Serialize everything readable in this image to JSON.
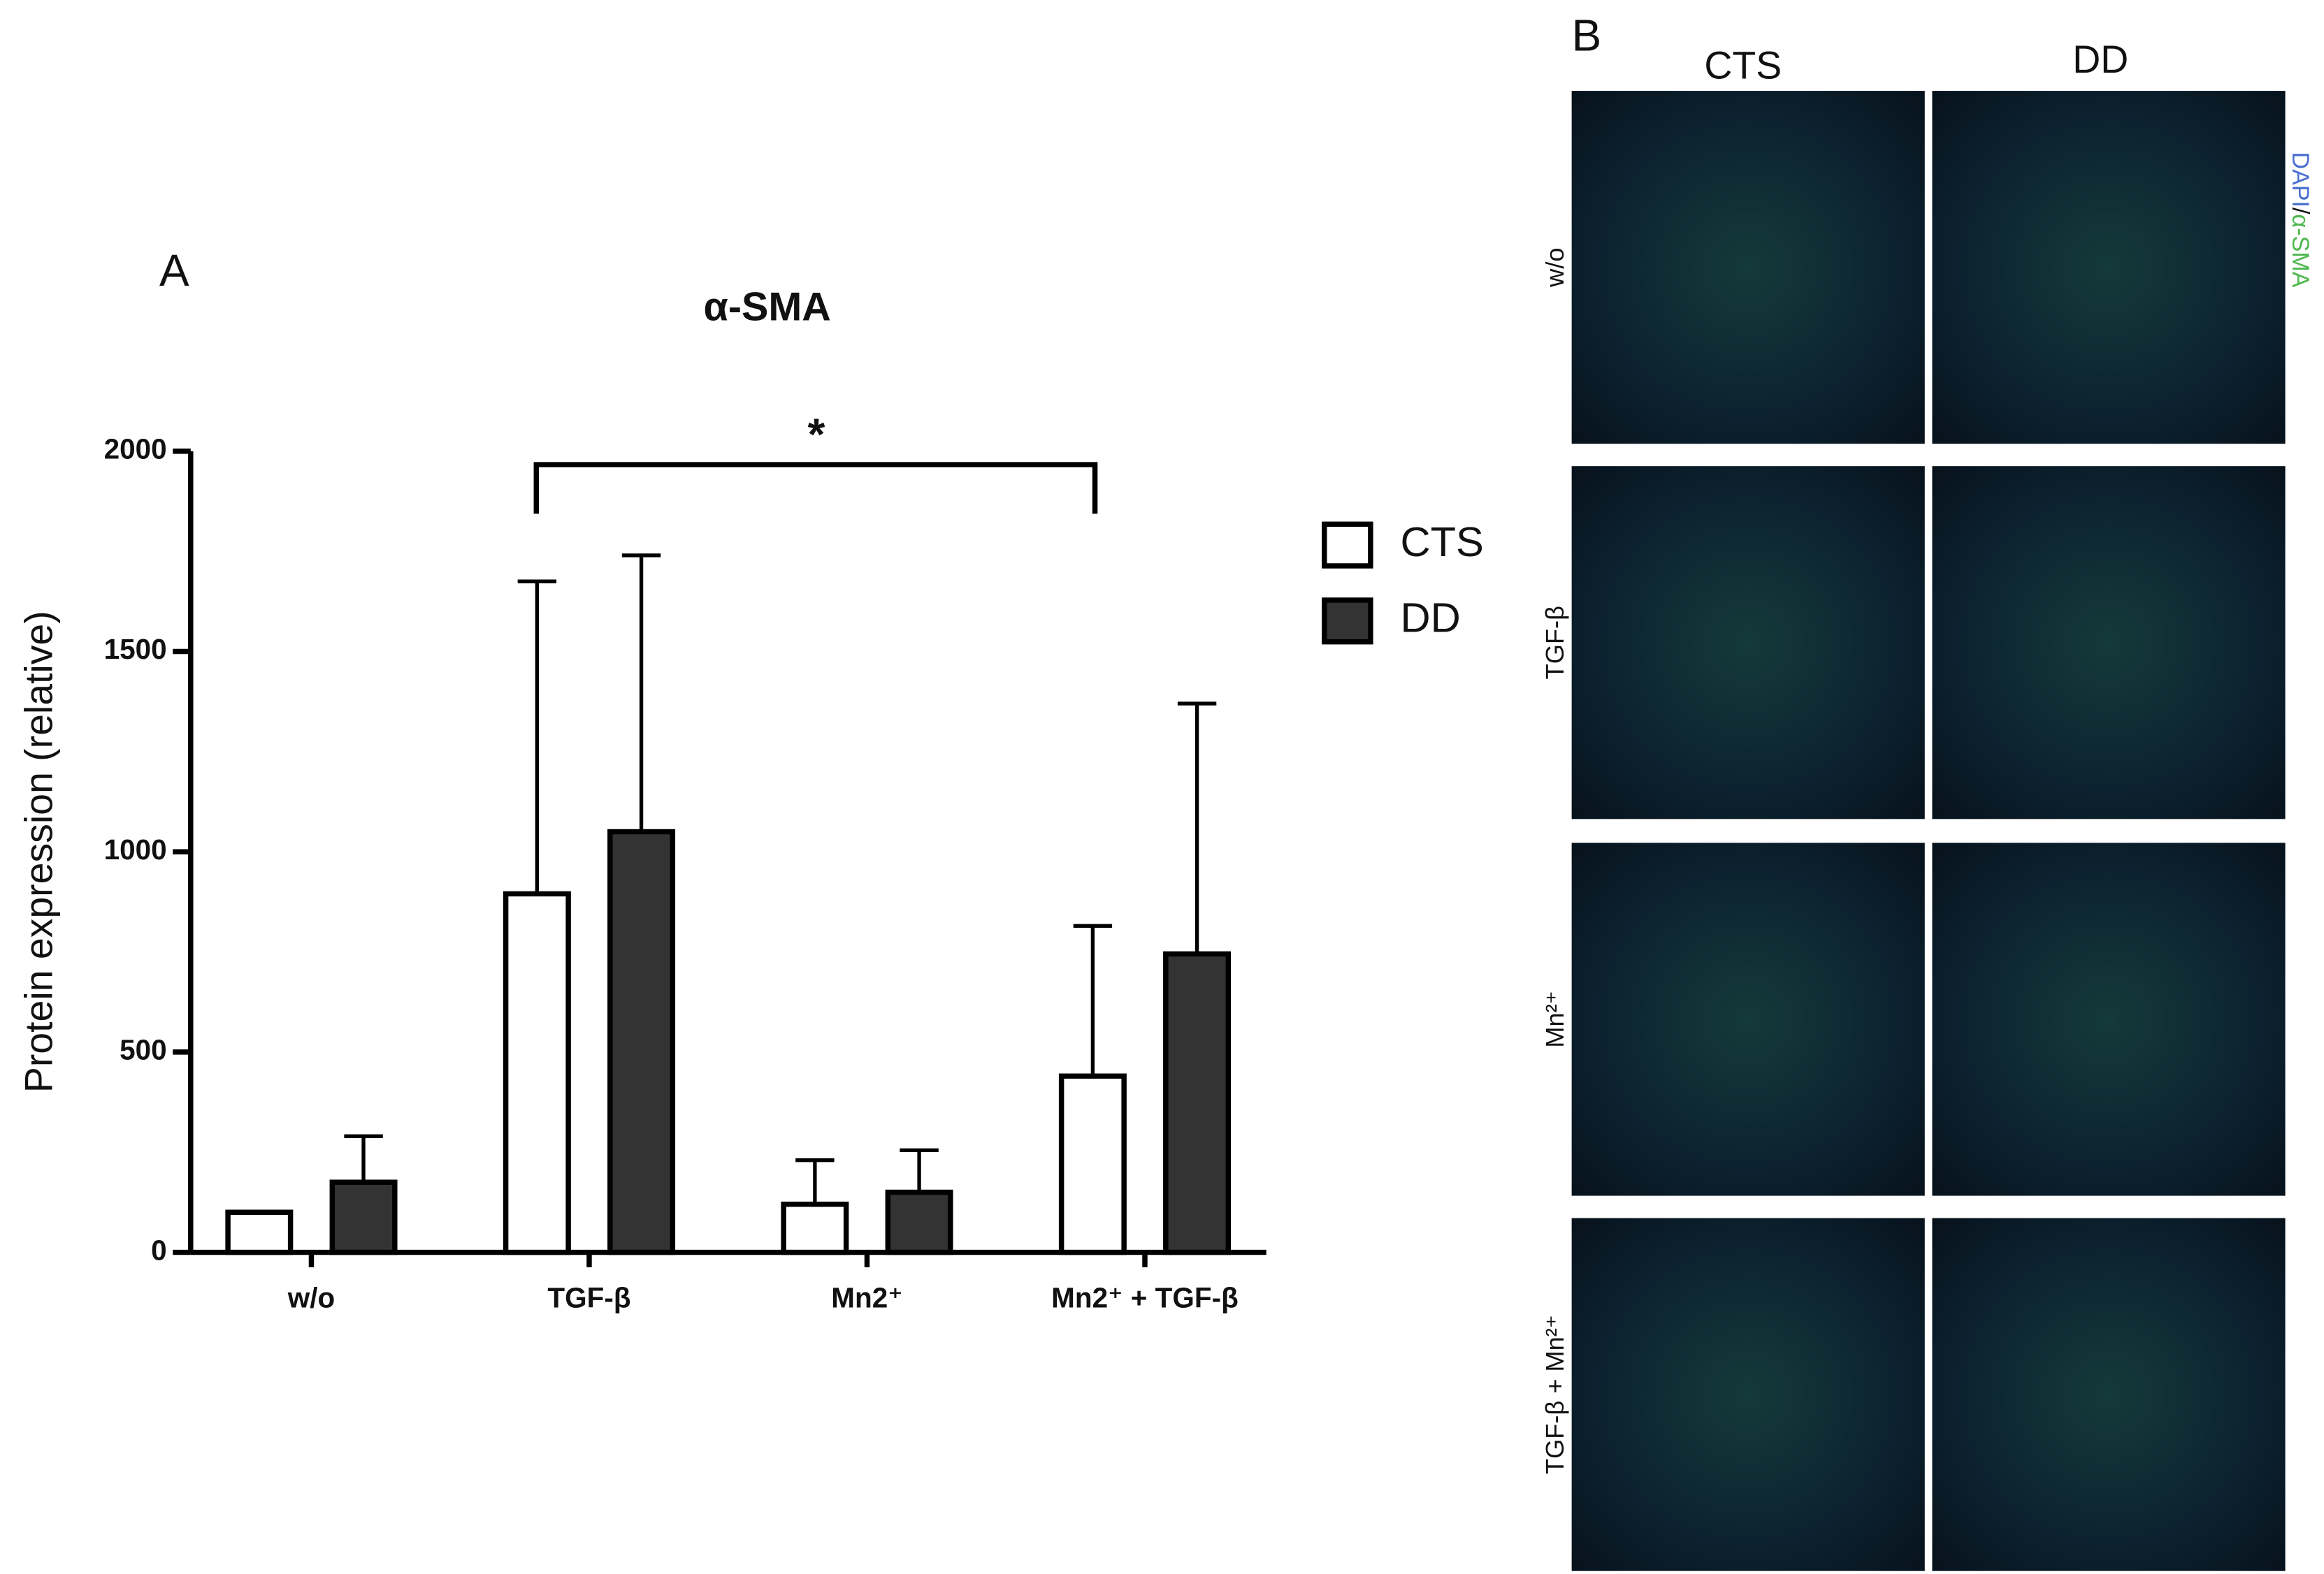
{
  "chart_data": {
    "type": "bar",
    "panel_label": "A",
    "title": "α-SMA",
    "y_label": "Protein expression (relative)",
    "categories": [
      "w/o",
      "TGF-β",
      "Mn2⁺",
      "Mn2⁺ + TGF-β"
    ],
    "series": [
      {
        "name": "CTS",
        "color": "#ffffff",
        "values": [
          100,
          895,
          120,
          440
        ],
        "errors": [
          null,
          780,
          110,
          375
        ]
      },
      {
        "name": "DD",
        "color": "#333333",
        "values": [
          175,
          1050,
          150,
          745
        ],
        "errors": [
          115,
          690,
          105,
          625
        ]
      }
    ],
    "ylim": [
      0,
      2000
    ],
    "yticks": [
      0,
      500,
      1000,
      1500,
      2000
    ],
    "annotation": "*",
    "legend": "right"
  },
  "panel_b": {
    "label": "B",
    "columns": [
      "CTS",
      "DD"
    ],
    "rows": [
      "w/o",
      "TGF-β",
      "Mn²⁺",
      "TGF-β + Mn²⁺"
    ],
    "stain": {
      "dapi": "DAPI",
      "separator": "/",
      "sma": "α-SMA"
    }
  }
}
